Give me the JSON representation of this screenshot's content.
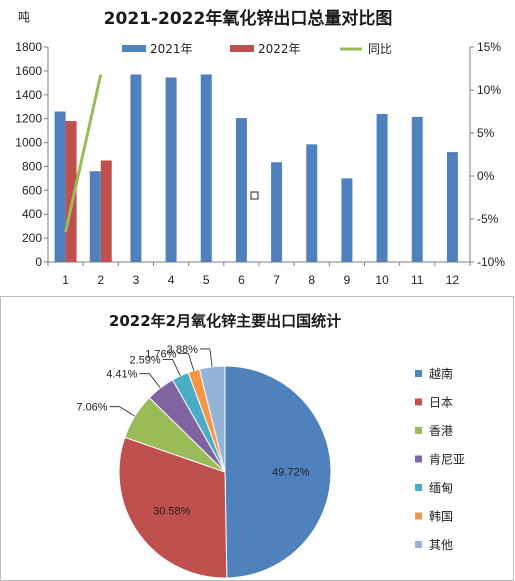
{
  "chart_data": [
    {
      "type": "bar",
      "title": "2021-2022年氧化锌出口总量对比图",
      "ylabel": "吨",
      "categories": [
        "1",
        "2",
        "3",
        "4",
        "5",
        "6",
        "7",
        "8",
        "9",
        "10",
        "11",
        "12"
      ],
      "ylim": [
        0,
        1800
      ],
      "yticks": [
        "1800",
        "1600",
        "1400",
        "1200",
        "1000",
        "800",
        "600",
        "400",
        "200",
        "0"
      ],
      "y2lim": [
        -10,
        15
      ],
      "y2ticks": [
        "15%",
        "10%",
        "5%",
        "0%",
        "-5%",
        "-10%"
      ],
      "series": [
        {
          "name": "2021年",
          "type": "bar",
          "color": "#4F81BD",
          "values": [
            1260,
            760,
            1570,
            1545,
            1570,
            1205,
            835,
            985,
            700,
            1240,
            1215,
            920
          ]
        },
        {
          "name": "2022年",
          "type": "bar",
          "color": "#C0504D",
          "values": [
            1180,
            850,
            null,
            null,
            null,
            null,
            null,
            null,
            null,
            null,
            null,
            null
          ]
        },
        {
          "name": "同比",
          "type": "line",
          "axis": "right",
          "color": "#9BBB59",
          "values": [
            -6.5,
            11.8,
            null,
            null,
            null,
            null,
            null,
            null,
            null,
            null,
            null,
            null
          ]
        }
      ],
      "grid": false,
      "legend": "top"
    },
    {
      "type": "pie",
      "title": "2022年2月氧化锌主要出口国统计",
      "categories": [
        "越南",
        "日本",
        "香港",
        "肯尼亚",
        "缅甸",
        "韩国",
        "其他"
      ],
      "values": [
        49.72,
        30.58,
        7.06,
        4.41,
        2.59,
        1.76,
        3.88
      ],
      "labels": [
        "49.72%",
        "30.58%",
        "7.06%",
        "4.41%",
        "2.59%",
        "1.76%",
        "3.88%"
      ],
      "colors": [
        "#4F81BD",
        "#C0504D",
        "#9BBB59",
        "#8064A2",
        "#4BACC6",
        "#F79646",
        "#95B3D7"
      ],
      "legend": "right"
    }
  ]
}
